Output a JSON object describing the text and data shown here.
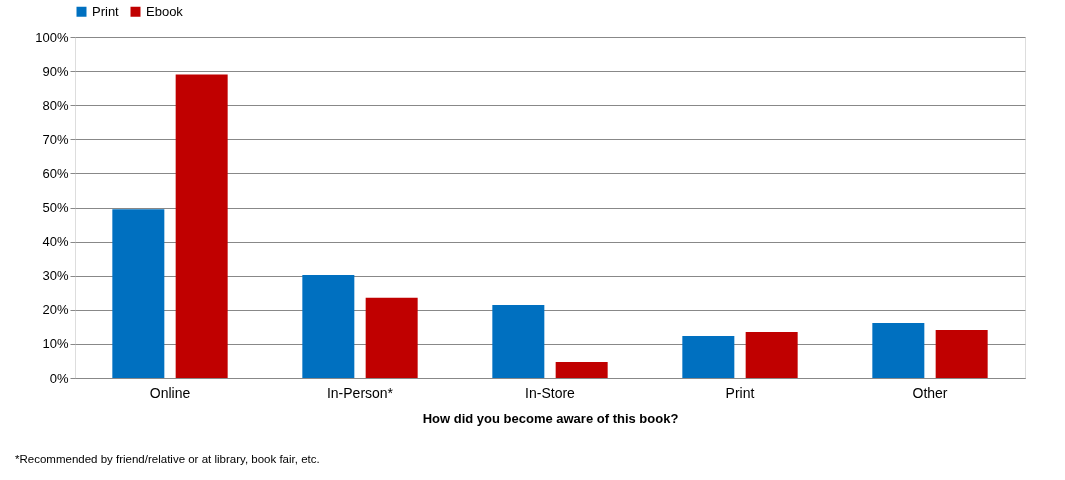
{
  "chart_data": {
    "type": "bar",
    "xlabel": "How did you become aware of this book?",
    "categories": [
      "Online",
      "In-Person*",
      "In-Store",
      "Print",
      "Other"
    ],
    "series": [
      {
        "name": "Print",
        "color": "#0070c0",
        "values": [
          49.5,
          30.2,
          21.4,
          12.3,
          16.1
        ]
      },
      {
        "name": "Ebook",
        "color": "#c00000",
        "values": [
          89,
          23.5,
          4.7,
          13.5,
          14.1
        ]
      }
    ],
    "ylim": [
      0,
      100
    ],
    "yticks": [
      {
        "value": 0,
        "label": "0%"
      },
      {
        "value": 10,
        "label": "10%"
      },
      {
        "value": 20,
        "label": "20%"
      },
      {
        "value": 30,
        "label": "30%"
      },
      {
        "value": 40,
        "label": "40%"
      },
      {
        "value": 50,
        "label": "50%"
      },
      {
        "value": 60,
        "label": "60%"
      },
      {
        "value": 70,
        "label": "70%"
      },
      {
        "value": 80,
        "label": "80%"
      },
      {
        "value": 90,
        "label": "90%"
      },
      {
        "value": 100,
        "label": "100%"
      }
    ],
    "grid": "y",
    "legend": "top",
    "annotations": [
      "*Recommended by friend/relative or at library, book fair, etc."
    ]
  }
}
